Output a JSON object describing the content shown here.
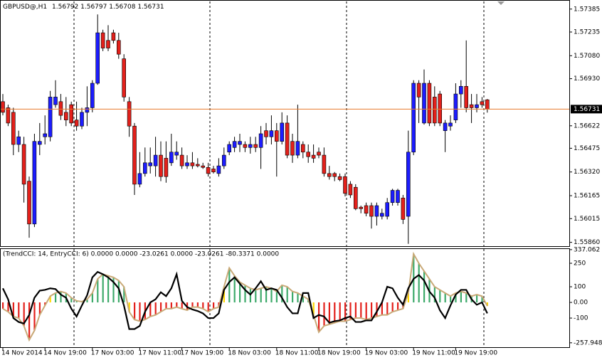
{
  "chart_data": [
    {
      "type": "candlestick",
      "symbol": "GBPUSD@,H1",
      "categories": [
        "14 Nov 2014",
        null,
        null,
        null,
        null,
        null,
        null,
        null,
        "14 Nov 19:00",
        null,
        null,
        null,
        null,
        null,
        null,
        null,
        null,
        "17 Nov 03:00",
        null,
        null,
        null,
        null,
        null,
        null,
        null,
        null,
        "17 Nov 11:00",
        null,
        null,
        null,
        null,
        null,
        null,
        null,
        "17 Nov 19:00",
        null,
        null,
        null,
        null,
        null,
        null,
        null,
        null,
        "18 Nov 03:00",
        null,
        null,
        null,
        null,
        null,
        null,
        null,
        null,
        "18 Nov 11:00",
        null,
        null,
        null,
        null,
        null,
        null,
        null,
        "18 Nov 19:00",
        null,
        null,
        null,
        null,
        null,
        null,
        null,
        null,
        "19 Nov 03:00",
        null,
        null,
        null,
        null,
        null,
        null,
        null,
        null,
        "19 Nov 11:00",
        null,
        null,
        null,
        null,
        null,
        null,
        null,
        "19 Nov 19:00",
        null,
        null,
        null,
        null,
        null,
        null
      ],
      "open": [
        1.5678,
        1.5674,
        1.5671,
        1.565,
        1.565,
        1.5626,
        1.5598,
        1.565,
        1.5655,
        1.5655,
        1.5676,
        1.5678,
        1.5671,
        1.5676,
        1.5666,
        1.5662,
        1.5671,
        1.5674,
        1.569,
        1.5723,
        1.5718,
        1.5723,
        1.5718,
        1.5706,
        1.5678,
        1.5662,
        1.5624,
        1.5631,
        1.5636,
        1.5636,
        1.5643,
        1.5641,
        1.5638,
        1.5643,
        1.5643,
        1.5636,
        1.5638,
        1.5637,
        1.5636,
        1.5635,
        1.5634,
        1.5631,
        1.5636,
        1.5645,
        1.5648,
        1.565,
        1.565,
        1.5648,
        1.565,
        1.5648,
        1.5659,
        1.5655,
        1.5659,
        1.5652,
        1.5664,
        1.5652,
        1.5643,
        1.565,
        1.5645,
        1.5643,
        1.5645,
        1.5643,
        1.5631,
        1.5631,
        1.5629,
        1.5629,
        1.5624,
        1.5622,
        1.5609,
        1.561,
        1.561,
        1.5603,
        1.5603,
        1.5603,
        1.5612,
        1.5612,
        1.5615,
        1.5603,
        1.5645,
        1.569,
        1.5664,
        1.569,
        1.5681,
        1.5683,
        1.5659,
        1.5662,
        1.5666,
        1.5683,
        1.5688,
        1.5676,
        1.5674,
        1.5678,
        1.56792
      ],
      "high": [
        1.5683,
        1.5676,
        1.5674,
        1.5659,
        1.5655,
        1.5629,
        1.5657,
        1.5664,
        1.5669,
        1.5685,
        1.5692,
        1.5683,
        1.5681,
        1.5678,
        1.5678,
        1.5674,
        1.5688,
        1.5692,
        1.5735,
        1.5725,
        1.5728,
        1.5725,
        1.5723,
        1.5709,
        1.5681,
        1.5664,
        1.5645,
        1.5648,
        1.5648,
        1.5655,
        1.5652,
        1.5652,
        1.5657,
        1.5652,
        1.5648,
        1.5643,
        1.5645,
        1.5641,
        1.5638,
        1.5638,
        1.5636,
        1.5641,
        1.5648,
        1.5652,
        1.5655,
        1.5657,
        1.5652,
        1.5655,
        1.5655,
        1.5662,
        1.5664,
        1.5669,
        1.5664,
        1.5671,
        1.5669,
        1.5657,
        1.5676,
        1.5652,
        1.565,
        1.565,
        1.5648,
        1.5648,
        1.5636,
        1.5632,
        1.5631,
        1.5631,
        1.5626,
        1.5624,
        1.561,
        1.5612,
        1.5612,
        1.5612,
        1.5608,
        1.5615,
        1.5621,
        1.5621,
        1.5617,
        1.5659,
        1.5692,
        1.5692,
        1.5699,
        1.5692,
        1.5688,
        1.5685,
        1.5666,
        1.5669,
        1.569,
        1.5692,
        1.5718,
        1.5683,
        1.5683,
        1.5681,
        1.56797
      ],
      "low": [
        1.5669,
        1.5662,
        1.5643,
        1.5645,
        1.5612,
        1.5589,
        1.5596,
        1.5643,
        1.565,
        1.5652,
        1.5674,
        1.5666,
        1.5662,
        1.5662,
        1.5659,
        1.566,
        1.5662,
        1.5671,
        1.5689,
        1.5711,
        1.5711,
        1.5716,
        1.5706,
        1.5678,
        1.5655,
        1.5617,
        1.5622,
        1.5629,
        1.5631,
        1.5629,
        1.5626,
        1.5625,
        1.5636,
        1.564,
        1.5634,
        1.5634,
        1.5634,
        1.5635,
        1.5634,
        1.5629,
        1.5631,
        1.5629,
        1.5634,
        1.5643,
        1.5645,
        1.5645,
        1.5645,
        1.5644,
        1.5645,
        1.5634,
        1.565,
        1.565,
        1.5629,
        1.565,
        1.5641,
        1.5638,
        1.5641,
        1.5641,
        1.5638,
        1.5638,
        1.5641,
        1.5629,
        1.5627,
        1.5626,
        1.5626,
        1.5616,
        1.5615,
        1.5607,
        1.5605,
        1.5603,
        1.5595,
        1.5597,
        1.5601,
        1.5601,
        1.561,
        1.561,
        1.5598,
        1.5585,
        1.5643,
        1.5664,
        1.5663,
        1.5662,
        1.5662,
        1.5662,
        1.5645,
        1.5659,
        1.5664,
        1.5674,
        1.5671,
        1.5664,
        1.5671,
        1.5674,
        1.56708
      ],
      "close": [
        1.5671,
        1.5664,
        1.565,
        1.5655,
        1.5624,
        1.5598,
        1.5652,
        1.5652,
        1.5657,
        1.5681,
        1.5681,
        1.5669,
        1.5666,
        1.5664,
        1.5662,
        1.5671,
        1.5674,
        1.569,
        1.5723,
        1.5713,
        1.5713,
        1.5718,
        1.5709,
        1.5681,
        1.5662,
        1.5624,
        1.5631,
        1.5638,
        1.5638,
        1.5643,
        1.5629,
        1.5629,
        1.5645,
        1.5645,
        1.5636,
        1.5638,
        1.5636,
        1.5636,
        1.5635,
        1.5631,
        1.5632,
        1.5636,
        1.5643,
        1.565,
        1.5652,
        1.5652,
        1.5648,
        1.565,
        1.5648,
        1.5657,
        1.5655,
        1.5659,
        1.5652,
        1.5664,
        1.5643,
        1.5643,
        1.5652,
        1.5645,
        1.5642,
        1.5641,
        1.5643,
        1.5631,
        1.5629,
        1.5629,
        1.5627,
        1.5618,
        1.5617,
        1.5608,
        1.5608,
        1.5605,
        1.5603,
        1.561,
        1.5605,
        1.5612,
        1.562,
        1.562,
        1.5601,
        1.5645,
        1.569,
        1.5681,
        1.569,
        1.5664,
        1.5664,
        1.5664,
        1.5664,
        1.5664,
        1.5683,
        1.5688,
        1.5674,
        1.5674,
        1.5676,
        1.5676,
        1.56731
      ],
      "up_color": "#1c1cff",
      "down_color": "#e3201b",
      "price_line_color": "#e8792e",
      "ylim": [
        1.55835,
        1.57435
      ],
      "yticks": [
        1.57385,
        1.57235,
        {
          "value": 1.5708,
          "label": "1.57080"
        },
        {
          "value": 1.5693,
          "label": "1.56930"
        },
        1.56622,
        1.56475,
        {
          "value": 1.5632,
          "label": "1.56320"
        },
        1.56165,
        1.56015,
        {
          "value": 1.5586,
          "label": "1.55860"
        }
      ]
    },
    {
      "type": "cci",
      "title": "(TrendCCI: 14, EntryCCI: 6) 0.0000 0.0000 -23.0261 0.0000 -23.0261 -80.3371 0.0000",
      "series": [
        {
          "color": "#c9a977",
          "values": [
            -40,
            -60,
            -90,
            -100,
            -150,
            -240,
            -180,
            -80,
            -20,
            40,
            60,
            70,
            60,
            30,
            10,
            5,
            20,
            60,
            150,
            180,
            170,
            160,
            140,
            100,
            -60,
            -110,
            -120,
            -110,
            -90,
            -80,
            -60,
            -40,
            -40,
            -30,
            -40,
            -50,
            -30,
            -30,
            -40,
            -60,
            -40,
            -30,
            100,
            220,
            170,
            130,
            110,
            90,
            80,
            90,
            100,
            90,
            70,
            110,
            100,
            70,
            60,
            40,
            20,
            -80,
            -190,
            -150,
            -140,
            -130,
            -120,
            -120,
            -110,
            -100,
            -100,
            -110,
            -100,
            -90,
            -80,
            -80,
            -60,
            -50,
            -40,
            60,
            310,
            250,
            200,
            150,
            100,
            80,
            60,
            40,
            60,
            70,
            60,
            40,
            50,
            40,
            -23.0261
          ]
        },
        {
          "color": "#000000",
          "values": [
            90,
            20,
            -100,
            -125,
            -135,
            -80,
            30,
            75,
            80,
            90,
            85,
            50,
            30,
            -40,
            -90,
            -20,
            45,
            160,
            195,
            180,
            160,
            130,
            90,
            -20,
            -170,
            -170,
            -150,
            -60,
            0,
            20,
            65,
            40,
            90,
            180,
            10,
            -30,
            -45,
            -55,
            -70,
            -100,
            -100,
            -70,
            80,
            130,
            160,
            120,
            80,
            50,
            90,
            135,
            80,
            90,
            80,
            30,
            -30,
            -70,
            -70,
            60,
            60,
            -100,
            -80,
            -90,
            -130,
            -120,
            -115,
            -100,
            -90,
            -125,
            -125,
            -115,
            -115,
            -60,
            0,
            100,
            90,
            30,
            -15,
            90,
            150,
            175,
            140,
            70,
            30,
            -50,
            -100,
            -20,
            50,
            80,
            80,
            20,
            -15,
            0,
            -70
          ]
        }
      ],
      "bar_colors": {
        "up": "#3daa6a",
        "down": "#e3201b",
        "cross": "#ffd800"
      },
      "ylim": [
        -286,
        341
      ],
      "yticks": [
        337.062,
        250,
        100,
        {
          "value": 0,
          "label": "0.00"
        },
        -100,
        -257.9483
      ]
    }
  ]
}
